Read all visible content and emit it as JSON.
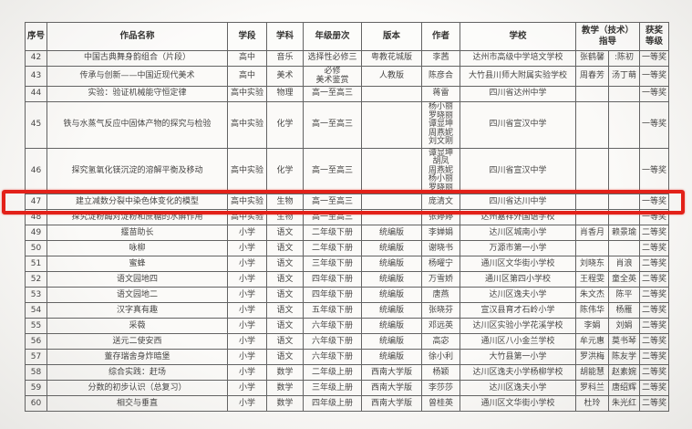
{
  "colors": {
    "highlight_red": "#e32119",
    "text": "#474645",
    "border": "#636363",
    "page_background": "#f2f1ee"
  },
  "table": {
    "columns": [
      "序号",
      "作品名称",
      "学段",
      "学科",
      "年级册次",
      "版本",
      "作者",
      "学校",
      "教学（技术）\n指导",
      "获奖\n等级"
    ],
    "rows": [
      {
        "no": "42",
        "title": "中国古典舞身韵组合（片段）",
        "stage": "高中",
        "subject": "音乐",
        "grade": "选择性必修三",
        "edition": "粤教花城版",
        "authors": [
          "李茜"
        ],
        "school": "达州市高级中学培文学校",
        "guide1": "张鹤馨",
        "guide2": ":陈初",
        "award": "一等奖",
        "highlight": false
      },
      {
        "no": "43",
        "title": "传承与创新——中国近现代美术",
        "stage": "高中",
        "subject": "美术",
        "grade": "必修\n美术鉴赏",
        "edition": "人教版",
        "authors": [
          "陈彦合"
        ],
        "school": "大竹县川师大附属实验学校",
        "guide1": "周春芳",
        "guide2": "汤丁萌",
        "award": "一等奖",
        "highlight": false
      },
      {
        "no": "44",
        "title": "实验：验证机械能守恒定律",
        "stage": "高中实验",
        "subject": "物理",
        "grade": "高一至高三",
        "edition": "",
        "authors": [
          "蒋雷"
        ],
        "school": "四川省达州中学",
        "guide1": "",
        "guide2": "",
        "award": "一等奖",
        "highlight": false
      },
      {
        "no": "45",
        "title": "铁与水蒸气反应中固体产物的探究与检验",
        "stage": "高中实验",
        "subject": "化学",
        "grade": "高一至高三",
        "edition": "",
        "authors": [
          "杨小丽",
          "罗晓丽",
          "谭显坤",
          "周燕妮",
          "刘文刚"
        ],
        "school": "四川省宣汉中学",
        "guide1": "",
        "guide2": "",
        "award": "一等奖",
        "highlight": false
      },
      {
        "no": "46",
        "title": "探究氢氧化镁沉淀的溶解平衡及移动",
        "stage": "高中实验",
        "subject": "化学",
        "grade": "高一至高三",
        "edition": "",
        "authors": [
          "谭显坤",
          "胡凤",
          "周燕妮",
          "杨小丽",
          "罗晓丽"
        ],
        "school": "四川省宣汉中学",
        "guide1": "",
        "guide2": "",
        "award": "一等奖",
        "highlight": false
      },
      {
        "no": "47",
        "title": "建立减数分裂中染色体变化的模型",
        "stage": "高中实验",
        "subject": "生物",
        "grade": "高一至高三",
        "edition": "",
        "authors": [
          "庞清文"
        ],
        "school": "四川省达川中学",
        "guide1": "",
        "guide2": "",
        "award": "一等奖",
        "highlight": true
      },
      {
        "no": "48",
        "title": "探究淀粉酶对淀粉和蔗糖的水解作用",
        "stage": "高中实验",
        "subject": "生物",
        "grade": "高一至高三",
        "edition": "",
        "authors": [
          "张婷婷"
        ],
        "school": "达州嘉祥外国语学校",
        "guide1": "",
        "guide2": "",
        "award": "一等奖",
        "highlight": false
      },
      {
        "no": "49",
        "title": "揠苗助长",
        "stage": "小学",
        "subject": "语文",
        "grade": "二年级下册",
        "edition": "统编版",
        "authors": [
          "李婵娟"
        ],
        "school": "达川区城南小学",
        "guide1": "肖香月",
        "guide2": "赖景瑜",
        "award": "二等奖",
        "highlight": false
      },
      {
        "no": "50",
        "title": "咏柳",
        "stage": "小学",
        "subject": "语文",
        "grade": "二年级下册",
        "edition": "统编版",
        "authors": [
          "谢晓书"
        ],
        "school": "万源市第一小学",
        "guide1": "",
        "guide2": "",
        "award": "二等奖",
        "highlight": false
      },
      {
        "no": "51",
        "title": "蜜蜂",
        "stage": "小学",
        "subject": "语文",
        "grade": "三年级下册",
        "edition": "统编版",
        "authors": [
          "杨曜宁"
        ],
        "school": "通川区文华街小学校",
        "guide1": "刘晓东",
        "guide2": "肖浪",
        "award": "二等奖",
        "highlight": false
      },
      {
        "no": "52",
        "title": "语文园地四",
        "stage": "小学",
        "subject": "语文",
        "grade": "四年级下册",
        "edition": "统编版",
        "authors": [
          "万雪娇"
        ],
        "school": "通川区第四小学校",
        "guide1": "王程雯",
        "guide2": "童全英",
        "award": "二等奖",
        "highlight": false
      },
      {
        "no": "53",
        "title": "语文园地二",
        "stage": "小学",
        "subject": "语文",
        "grade": "四年级下册",
        "edition": "统编版",
        "authors": [
          "唐燕"
        ],
        "school": "达川区逸夫小学",
        "guide1": "朱文杰",
        "guide2": "陈平",
        "award": "二等奖",
        "highlight": false
      },
      {
        "no": "54",
        "title": "汉字真有趣",
        "stage": "小学",
        "subject": "语文",
        "grade": "五年级下册",
        "edition": "统编版",
        "authors": [
          "张晓芬"
        ],
        "school": "宣汉县育才石岭小学",
        "guide1": "陈伟华",
        "guide2": "杨雁",
        "award": "二等奖",
        "highlight": false
      },
      {
        "no": "55",
        "title": "采薇",
        "stage": "小学",
        "subject": "语文",
        "grade": "六年级下册",
        "edition": "统编版",
        "authors": [
          "邓远英"
        ],
        "school": "达川区实验小学花溪学校",
        "guide1": "李娟",
        "guide2": "刘娟",
        "award": "二等奖",
        "highlight": false
      },
      {
        "no": "56",
        "title": "送元二使安西",
        "stage": "小学",
        "subject": "语文",
        "grade": "六年级下册",
        "edition": "统编版",
        "authors": [
          "高宓"
        ],
        "school": "通川区八小金兰学校",
        "guide1": "牟元惠",
        "guide2": "莫书琴",
        "award": "二等奖",
        "highlight": false
      },
      {
        "no": "57",
        "title": "董存瑞舍身炸暗堡",
        "stage": "小学",
        "subject": "语文",
        "grade": "六年级下册",
        "edition": "统编版",
        "authors": [
          "徐小利"
        ],
        "school": "大竹县第一小学",
        "guide1": "罗洪梅",
        "guide2": "陈友学",
        "award": "二等奖",
        "highlight": false
      },
      {
        "no": "58",
        "title": "综合实践：赶场",
        "stage": "小学",
        "subject": "数学",
        "grade": "二年级上册",
        "edition": "西南大学版",
        "authors": [
          "杨颖"
        ],
        "school": "达川区逸夫小学杨柳学校",
        "guide1": "胡能慧",
        "guide2": "赵素婉",
        "award": "二等奖",
        "highlight": false
      },
      {
        "no": "59",
        "title": "分数的初步认识（总复习）",
        "stage": "小学",
        "subject": "数学",
        "grade": "三年级上册",
        "edition": "西南大学版",
        "authors": [
          "李莎莎"
        ],
        "school": "达川区逸夫小学",
        "guide1": "罗科兰",
        "guide2": "唐绍辉",
        "award": "二等奖",
        "highlight": false
      },
      {
        "no": "60",
        "title": "相交与垂直",
        "stage": "小学",
        "subject": "数学",
        "grade": "四年级上册",
        "edition": "西南大学版",
        "authors": [
          "曾桂英"
        ],
        "school": "通川区文华街小学校",
        "guide1": "杜玲",
        "guide2": "朱光红",
        "award": "二等奖",
        "highlight": false
      }
    ]
  }
}
